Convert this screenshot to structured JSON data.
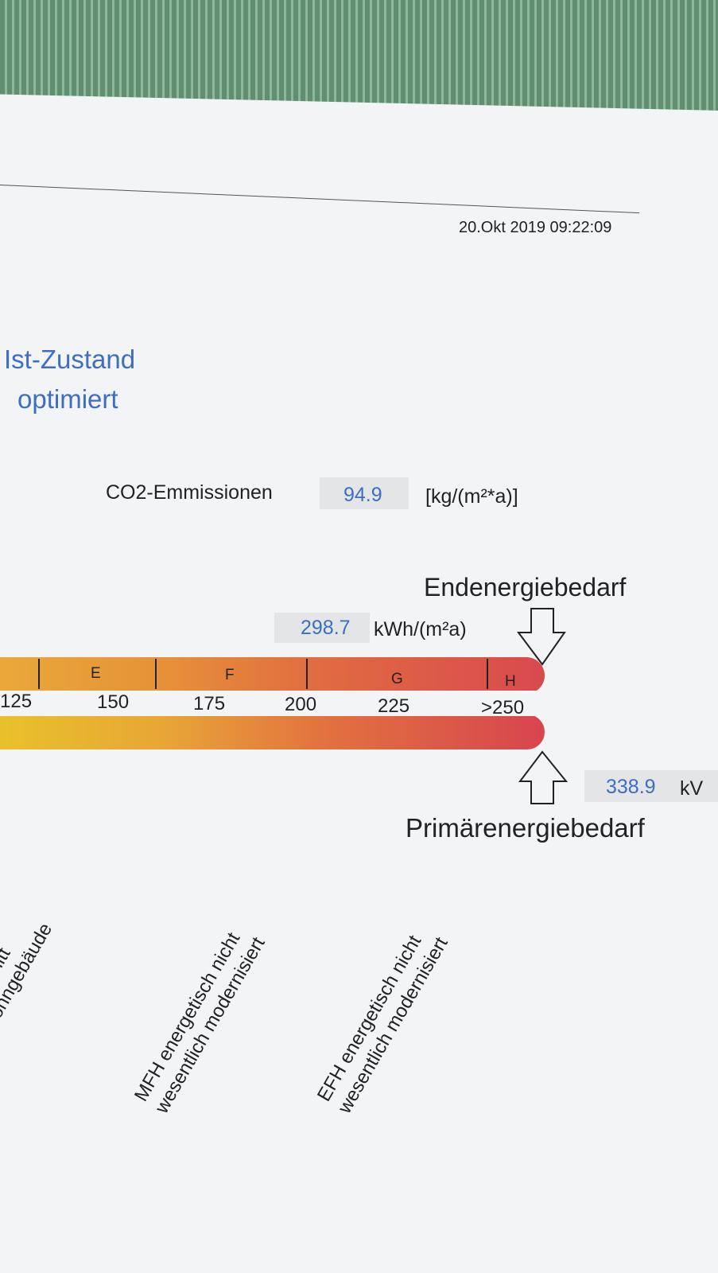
{
  "header": {
    "date": "20.Okt 2019 09:22:09"
  },
  "legend": {
    "current": "Ist-Zustand",
    "optimized": "optimiert"
  },
  "co2": {
    "label": "CO2-Emmissionen",
    "value": "94.9",
    "unit": "[kg/(m²*a)]"
  },
  "final_energy": {
    "label": "Endenergiebedarf",
    "value": "298.7",
    "unit": "kWh/(m²a)"
  },
  "scale": {
    "classes": [
      "E",
      "F",
      "G",
      "H"
    ],
    "ticks": [
      "125",
      "150",
      "175",
      "200",
      "225",
      ">250"
    ]
  },
  "primary_energy": {
    "label": "Primärenergiebedarf",
    "value": "338.9",
    "unit": "kV"
  },
  "references": [
    {
      "line1": "rchschnitt",
      "line2": "Wohngebäude"
    },
    {
      "line1": "MFH energetisch nicht",
      "line2": "wesentlich modernisiert"
    },
    {
      "line1": "EFH energetisch nicht",
      "line2": "wesentlich modernisiert"
    }
  ]
}
